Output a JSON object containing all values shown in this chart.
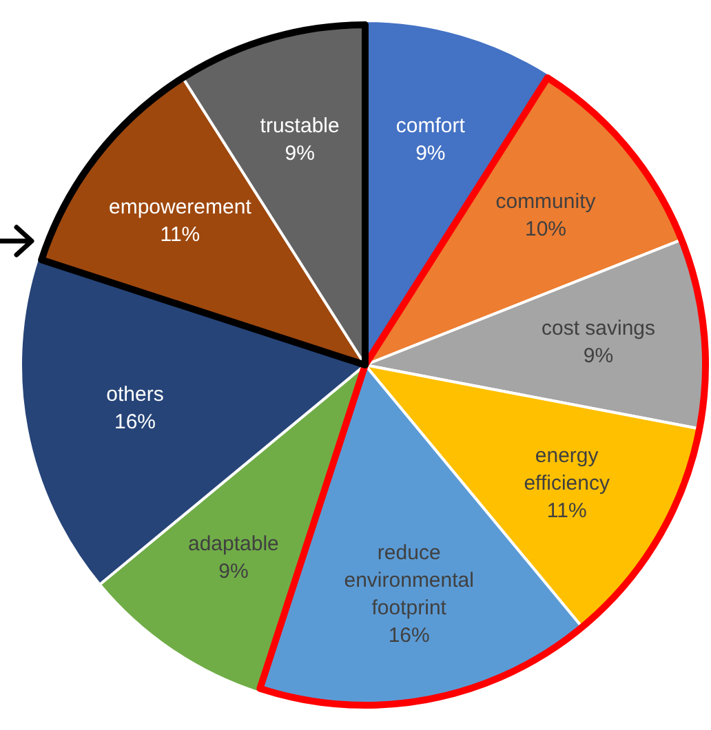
{
  "chart_data": {
    "type": "pie",
    "categories": [
      "comfort",
      "community",
      "cost savings",
      "energy efficiency",
      "reduce environmental footprint",
      "adaptable",
      "others",
      "empowerement",
      "trustable"
    ],
    "values": [
      9,
      10,
      9,
      11,
      16,
      9,
      16,
      11,
      9
    ],
    "value_labels": [
      "9%",
      "10%",
      "9%",
      "11%",
      "16%",
      "9%",
      "16%",
      "11%",
      "9%"
    ],
    "colors": [
      "#4472c4",
      "#ed7d31",
      "#a5a5a5",
      "#ffc000",
      "#5b9bd5",
      "#70ad47",
      "#264478",
      "#9e480e",
      "#636363"
    ],
    "legend": false
  }
}
